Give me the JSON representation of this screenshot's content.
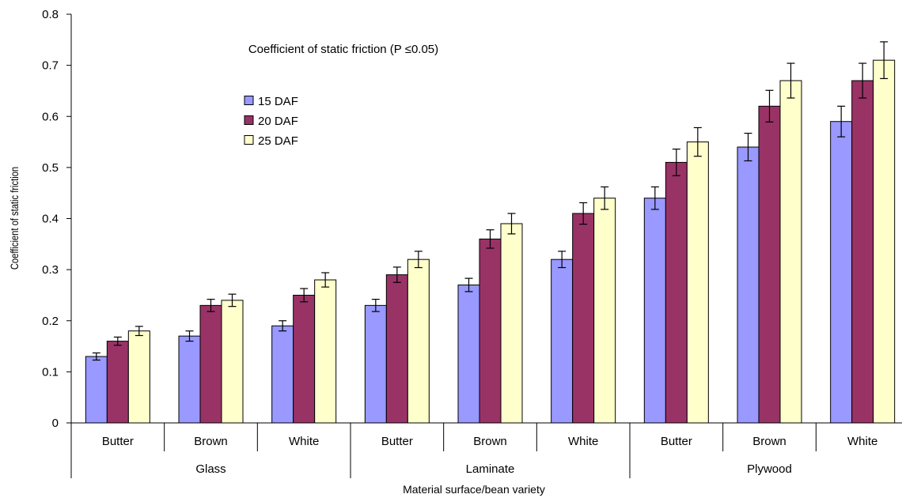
{
  "chart_data": {
    "type": "bar",
    "title": "Coefficient of static friction (P ≤0.05)",
    "xlabel": "Material surface/bean variety",
    "ylabel": "Coefficient of static friction",
    "ylim": [
      0,
      0.8
    ],
    "yticks": [
      "0",
      "0.1",
      "0.2",
      "0.3",
      "0.4",
      "0.5",
      "0.6",
      "0.7",
      "0.8"
    ],
    "groups": [
      {
        "label": "Glass",
        "categories": [
          "Butter",
          "Brown",
          "White"
        ]
      },
      {
        "label": "Laminate",
        "categories": [
          "Butter",
          "Brown",
          "White"
        ]
      },
      {
        "label": "Plywood",
        "categories": [
          "Butter",
          "Brown",
          "White"
        ]
      }
    ],
    "series": [
      {
        "name": "15 DAF",
        "color": "#9999ff",
        "values": [
          0.13,
          0.17,
          0.19,
          0.23,
          0.27,
          0.32,
          0.44,
          0.54,
          0.59
        ],
        "errors": [
          0.007,
          0.01,
          0.01,
          0.012,
          0.013,
          0.016,
          0.022,
          0.027,
          0.03
        ]
      },
      {
        "name": "20 DAF",
        "color": "#993366",
        "values": [
          0.16,
          0.23,
          0.25,
          0.29,
          0.36,
          0.41,
          0.51,
          0.62,
          0.67
        ],
        "errors": [
          0.008,
          0.012,
          0.013,
          0.015,
          0.018,
          0.021,
          0.026,
          0.031,
          0.034
        ]
      },
      {
        "name": "25 DAF",
        "color": "#ffffcc",
        "values": [
          0.18,
          0.24,
          0.28,
          0.32,
          0.39,
          0.44,
          0.55,
          0.67,
          0.71
        ],
        "errors": [
          0.009,
          0.012,
          0.014,
          0.016,
          0.02,
          0.022,
          0.028,
          0.034,
          0.036
        ]
      }
    ],
    "legend_position": "upper-left",
    "grid": false
  }
}
